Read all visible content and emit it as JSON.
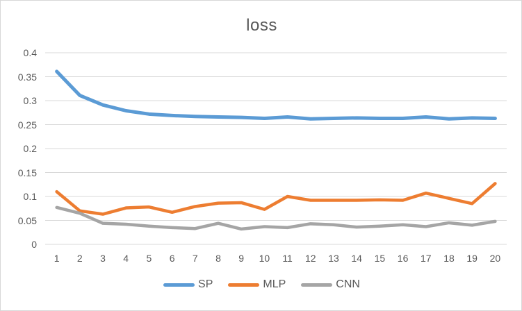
{
  "chart_data": {
    "type": "line",
    "title": "loss",
    "x": [
      1,
      2,
      3,
      4,
      5,
      6,
      7,
      8,
      9,
      10,
      11,
      12,
      13,
      14,
      15,
      16,
      17,
      18,
      19,
      20
    ],
    "series": [
      {
        "name": "SP",
        "color": "#5B9BD5",
        "values": [
          0.361,
          0.311,
          0.291,
          0.279,
          0.272,
          0.269,
          0.267,
          0.266,
          0.265,
          0.263,
          0.266,
          0.262,
          0.263,
          0.264,
          0.263,
          0.263,
          0.266,
          0.262,
          0.264,
          0.263
        ]
      },
      {
        "name": "MLP",
        "color": "#ED7D31",
        "values": [
          0.11,
          0.07,
          0.063,
          0.076,
          0.078,
          0.067,
          0.079,
          0.086,
          0.087,
          0.073,
          0.1,
          0.092,
          0.092,
          0.092,
          0.093,
          0.092,
          0.107,
          0.096,
          0.085,
          0.127
        ]
      },
      {
        "name": "CNN",
        "color": "#A5A5A5",
        "values": [
          0.077,
          0.065,
          0.044,
          0.042,
          0.038,
          0.035,
          0.033,
          0.044,
          0.032,
          0.037,
          0.035,
          0.043,
          0.041,
          0.036,
          0.038,
          0.041,
          0.037,
          0.045,
          0.04,
          0.048
        ]
      }
    ],
    "xlabel": "",
    "ylabel": "",
    "ylim": [
      0,
      0.4
    ],
    "ytick_step": 0.05,
    "ytick_labels": [
      "0",
      "0.05",
      "0.1",
      "0.15",
      "0.2",
      "0.25",
      "0.3",
      "0.35",
      "0.4"
    ],
    "grid": true,
    "gridline_color": "#D9D9D9",
    "legend_position": "bottom",
    "text_color": "#595959",
    "background_color": "#FFFFFF",
    "border_color": "#D7D7D7"
  }
}
